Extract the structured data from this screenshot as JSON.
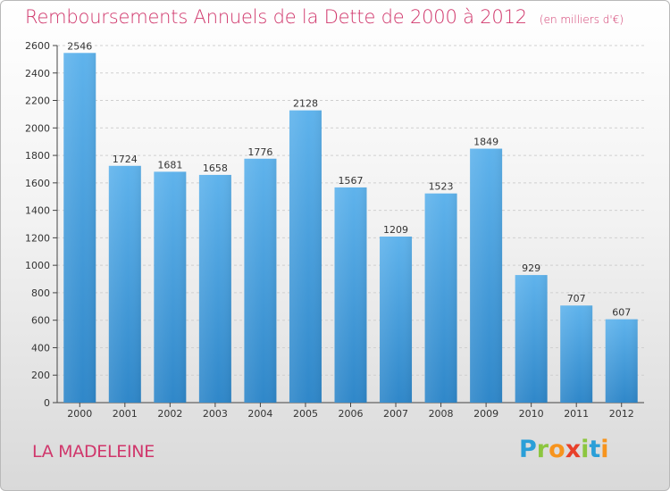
{
  "chart_data": {
    "type": "bar",
    "title": "Remboursements Annuels de la Dette de 2000 à 2012",
    "unit_note": "(en milliers d'€)",
    "categories": [
      "2000",
      "2001",
      "2002",
      "2003",
      "2004",
      "2005",
      "2006",
      "2007",
      "2008",
      "2009",
      "2010",
      "2011",
      "2012"
    ],
    "values": [
      2546,
      1724,
      1681,
      1658,
      1776,
      2128,
      1567,
      1209,
      1523,
      1849,
      929,
      707,
      607
    ],
    "ylim": [
      0,
      2600
    ],
    "yticks": [
      0,
      200,
      400,
      600,
      800,
      1000,
      1200,
      1400,
      1600,
      1800,
      2000,
      2200,
      2400,
      2600
    ],
    "grid": true,
    "bar_color": "#4da6e3"
  },
  "place_label": "LA MADELEINE",
  "logo": {
    "text": "Proxiti",
    "letters": [
      {
        "ch": "P",
        "color": "#2a9fd8"
      },
      {
        "ch": "r",
        "color": "#8cc63f"
      },
      {
        "ch": "o",
        "color": "#f7941d"
      },
      {
        "ch": "x",
        "color": "#e8402a"
      },
      {
        "ch": "i",
        "color": "#8cc63f"
      },
      {
        "ch": "t",
        "color": "#2a9fd8"
      },
      {
        "ch": "i",
        "color": "#f7941d"
      }
    ]
  }
}
